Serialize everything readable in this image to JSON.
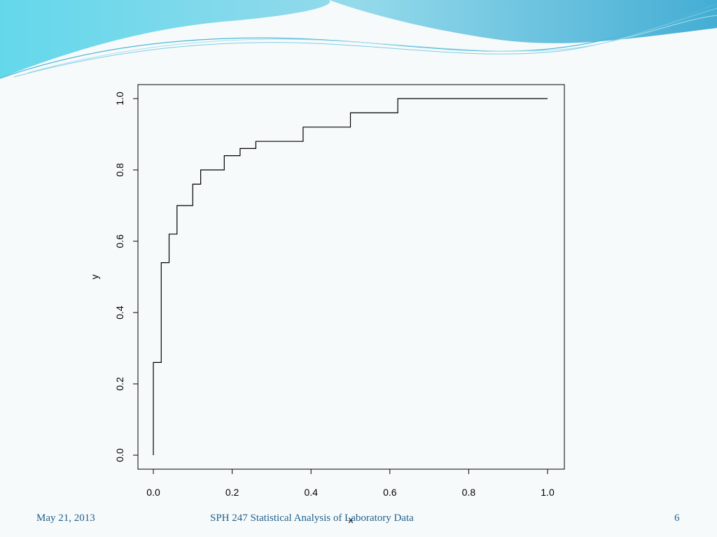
{
  "footer": {
    "date": "May 21, 2013",
    "title": "SPH 247 Statistical Analysis of Laboratory Data",
    "page": "6"
  },
  "chart_data": {
    "type": "line",
    "step": true,
    "title": "",
    "xlabel": "x",
    "ylabel": "y",
    "xlim": [
      0.0,
      1.0
    ],
    "ylim": [
      0.0,
      1.0
    ],
    "x_ticks": [
      "0.0",
      "0.2",
      "0.4",
      "0.6",
      "0.8",
      "1.0"
    ],
    "y_ticks": [
      "0.0",
      "0.2",
      "0.4",
      "0.6",
      "0.8",
      "1.0"
    ],
    "grid": false,
    "legend": "none",
    "line_color": "#000000",
    "points": [
      {
        "x": 0.0,
        "y": 0.0
      },
      {
        "x": 0.0,
        "y": 0.26
      },
      {
        "x": 0.02,
        "y": 0.26
      },
      {
        "x": 0.02,
        "y": 0.54
      },
      {
        "x": 0.04,
        "y": 0.54
      },
      {
        "x": 0.04,
        "y": 0.62
      },
      {
        "x": 0.06,
        "y": 0.62
      },
      {
        "x": 0.06,
        "y": 0.7
      },
      {
        "x": 0.1,
        "y": 0.7
      },
      {
        "x": 0.1,
        "y": 0.76
      },
      {
        "x": 0.12,
        "y": 0.76
      },
      {
        "x": 0.12,
        "y": 0.8
      },
      {
        "x": 0.18,
        "y": 0.8
      },
      {
        "x": 0.18,
        "y": 0.84
      },
      {
        "x": 0.22,
        "y": 0.84
      },
      {
        "x": 0.22,
        "y": 0.86
      },
      {
        "x": 0.26,
        "y": 0.86
      },
      {
        "x": 0.26,
        "y": 0.88
      },
      {
        "x": 0.38,
        "y": 0.88
      },
      {
        "x": 0.38,
        "y": 0.92
      },
      {
        "x": 0.5,
        "y": 0.92
      },
      {
        "x": 0.5,
        "y": 0.96
      },
      {
        "x": 0.62,
        "y": 0.96
      },
      {
        "x": 0.62,
        "y": 1.0
      },
      {
        "x": 1.0,
        "y": 1.0
      }
    ]
  },
  "colors": {
    "background": "#f7fafb",
    "wave_light": "#bfe6ee",
    "wave_mid": "#7fd0e3",
    "wave_dark": "#3ba9d2",
    "footer_text": "#1f5f8b"
  }
}
